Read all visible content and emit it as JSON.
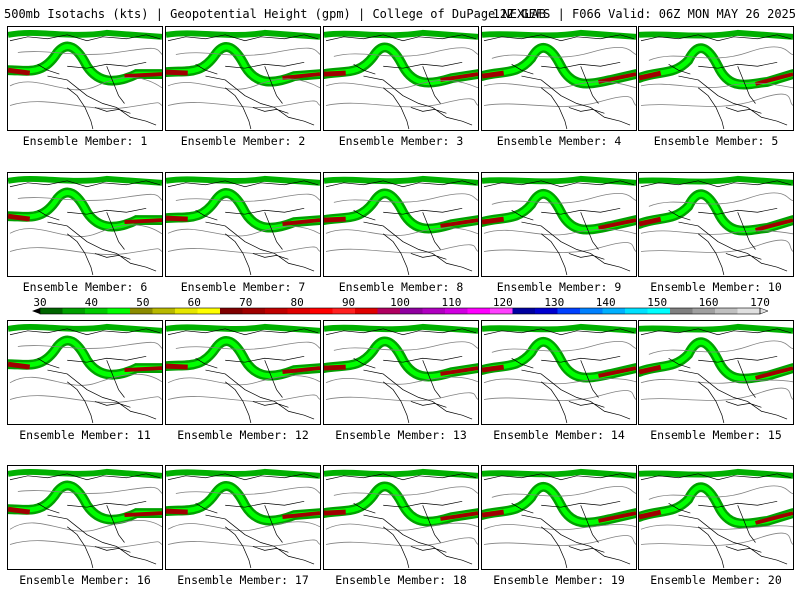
{
  "header": {
    "title": "500mb Isotachs (kts) | Geopotential Height (gpm) | College of DuPage NEXLAB",
    "model": "12Z GEFS | F066 Valid: 06Z MON MAY 26 2025"
  },
  "members": [
    {
      "label": "Ensemble Member: 1"
    },
    {
      "label": "Ensemble Member: 2"
    },
    {
      "label": "Ensemble Member: 3"
    },
    {
      "label": "Ensemble Member: 4"
    },
    {
      "label": "Ensemble Member: 5"
    },
    {
      "label": "Ensemble Member: 6"
    },
    {
      "label": "Ensemble Member: 7"
    },
    {
      "label": "Ensemble Member: 8"
    },
    {
      "label": "Ensemble Member: 9"
    },
    {
      "label": "Ensemble Member: 10"
    },
    {
      "label": "Ensemble Member: 11"
    },
    {
      "label": "Ensemble Member: 12"
    },
    {
      "label": "Ensemble Member: 13"
    },
    {
      "label": "Ensemble Member: 14"
    },
    {
      "label": "Ensemble Member: 15"
    },
    {
      "label": "Ensemble Member: 16"
    },
    {
      "label": "Ensemble Member: 17"
    },
    {
      "label": "Ensemble Member: 18"
    },
    {
      "label": "Ensemble Member: 19"
    },
    {
      "label": "Ensemble Member: 20"
    }
  ],
  "colorbar": {
    "labels": [
      "30",
      "40",
      "50",
      "60",
      "70",
      "80",
      "90",
      "100",
      "110",
      "120",
      "130",
      "140",
      "150",
      "160",
      "170"
    ],
    "colors": [
      "#006400",
      "#00a000",
      "#00cc00",
      "#00ff00",
      "#8b8b00",
      "#b8b800",
      "#e6e600",
      "#ffff00",
      "#800000",
      "#a00000",
      "#c00000",
      "#e00000",
      "#ff0000",
      "#ff2020",
      "#e00000",
      "#b00060",
      "#9000a0",
      "#b000c0",
      "#d000e0",
      "#ff00ff",
      "#ff40ff",
      "#0000a0",
      "#0000d0",
      "#0040ff",
      "#0080ff",
      "#00b0ff",
      "#00e0ff",
      "#00ffff",
      "#808080",
      "#a0a0a0",
      "#c0c0c0",
      "#e0e0e0"
    ]
  }
}
